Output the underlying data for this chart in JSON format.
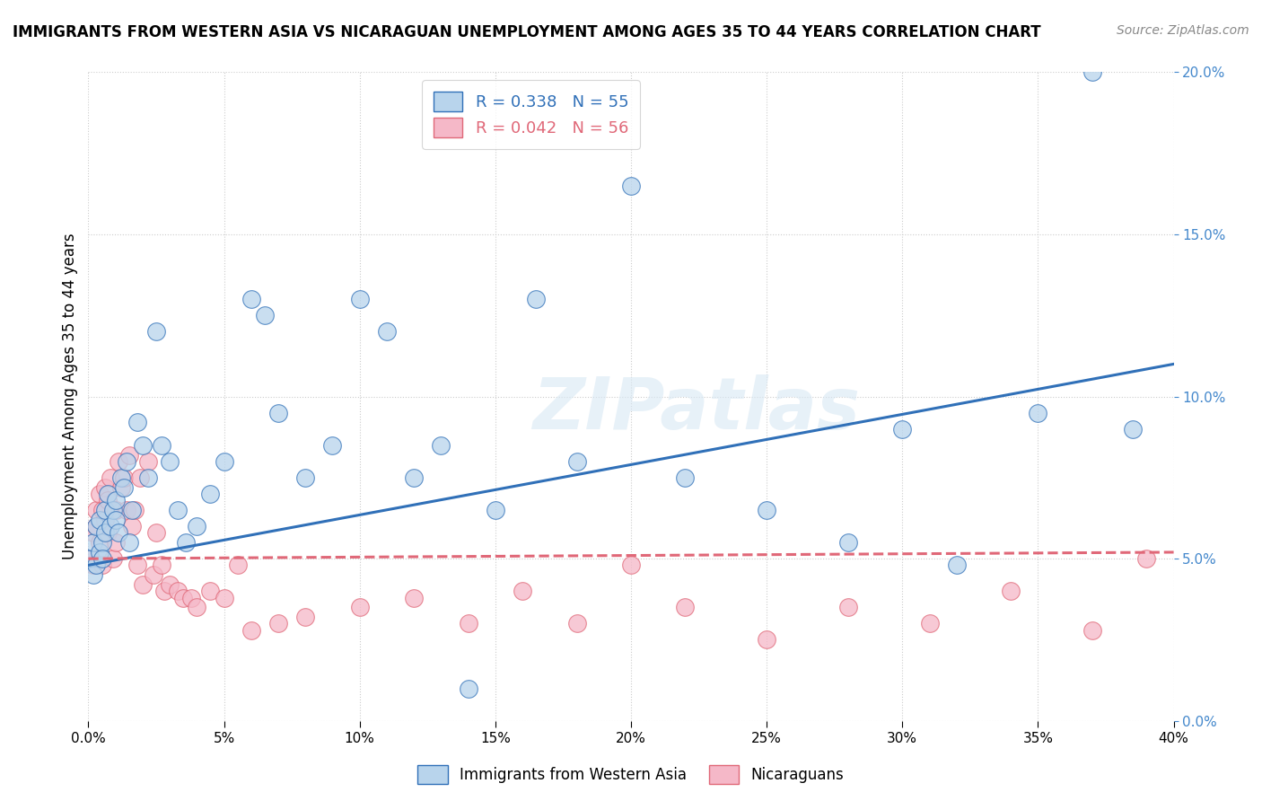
{
  "title": "IMMIGRANTS FROM WESTERN ASIA VS NICARAGUAN UNEMPLOYMENT AMONG AGES 35 TO 44 YEARS CORRELATION CHART",
  "source": "Source: ZipAtlas.com",
  "ylabel": "Unemployment Among Ages 35 to 44 years",
  "blue_label": "Immigrants from Western Asia",
  "pink_label": "Nicaraguans",
  "blue_R": 0.338,
  "blue_N": 55,
  "pink_R": 0.042,
  "pink_N": 56,
  "blue_color": "#b8d4ec",
  "pink_color": "#f5b8c8",
  "blue_line_color": "#3070b8",
  "pink_line_color": "#e06878",
  "background_color": "#ffffff",
  "xlim": [
    0.0,
    0.4
  ],
  "ylim": [
    0.0,
    0.2
  ],
  "xticks": [
    0.0,
    0.05,
    0.1,
    0.15,
    0.2,
    0.25,
    0.3,
    0.35,
    0.4
  ],
  "yticks": [
    0.0,
    0.05,
    0.1,
    0.15,
    0.2
  ],
  "blue_x": [
    0.001,
    0.002,
    0.002,
    0.003,
    0.003,
    0.004,
    0.004,
    0.005,
    0.005,
    0.006,
    0.006,
    0.007,
    0.008,
    0.009,
    0.01,
    0.01,
    0.011,
    0.012,
    0.013,
    0.014,
    0.015,
    0.016,
    0.018,
    0.02,
    0.022,
    0.025,
    0.027,
    0.03,
    0.033,
    0.036,
    0.04,
    0.045,
    0.05,
    0.06,
    0.065,
    0.07,
    0.08,
    0.09,
    0.1,
    0.11,
    0.12,
    0.13,
    0.14,
    0.15,
    0.165,
    0.18,
    0.2,
    0.22,
    0.25,
    0.28,
    0.3,
    0.32,
    0.35,
    0.37,
    0.385
  ],
  "blue_y": [
    0.05,
    0.055,
    0.045,
    0.06,
    0.048,
    0.062,
    0.052,
    0.055,
    0.05,
    0.065,
    0.058,
    0.07,
    0.06,
    0.065,
    0.068,
    0.062,
    0.058,
    0.075,
    0.072,
    0.08,
    0.055,
    0.065,
    0.092,
    0.085,
    0.075,
    0.12,
    0.085,
    0.08,
    0.065,
    0.055,
    0.06,
    0.07,
    0.08,
    0.13,
    0.125,
    0.095,
    0.075,
    0.085,
    0.13,
    0.12,
    0.075,
    0.085,
    0.01,
    0.065,
    0.13,
    0.08,
    0.165,
    0.075,
    0.065,
    0.055,
    0.09,
    0.048,
    0.095,
    0.2,
    0.09
  ],
  "pink_x": [
    0.001,
    0.002,
    0.002,
    0.003,
    0.003,
    0.004,
    0.004,
    0.005,
    0.005,
    0.006,
    0.006,
    0.007,
    0.007,
    0.008,
    0.009,
    0.01,
    0.01,
    0.011,
    0.012,
    0.013,
    0.014,
    0.015,
    0.016,
    0.017,
    0.018,
    0.019,
    0.02,
    0.022,
    0.024,
    0.025,
    0.027,
    0.028,
    0.03,
    0.033,
    0.035,
    0.038,
    0.04,
    0.045,
    0.05,
    0.055,
    0.06,
    0.07,
    0.08,
    0.1,
    0.12,
    0.14,
    0.16,
    0.18,
    0.2,
    0.22,
    0.25,
    0.28,
    0.31,
    0.34,
    0.37,
    0.39
  ],
  "pink_y": [
    0.05,
    0.058,
    0.048,
    0.065,
    0.06,
    0.07,
    0.055,
    0.065,
    0.048,
    0.062,
    0.072,
    0.058,
    0.068,
    0.075,
    0.05,
    0.055,
    0.065,
    0.08,
    0.072,
    0.075,
    0.065,
    0.082,
    0.06,
    0.065,
    0.048,
    0.075,
    0.042,
    0.08,
    0.045,
    0.058,
    0.048,
    0.04,
    0.042,
    0.04,
    0.038,
    0.038,
    0.035,
    0.04,
    0.038,
    0.048,
    0.028,
    0.03,
    0.032,
    0.035,
    0.038,
    0.03,
    0.04,
    0.03,
    0.048,
    0.035,
    0.025,
    0.035,
    0.03,
    0.04,
    0.028,
    0.05
  ]
}
